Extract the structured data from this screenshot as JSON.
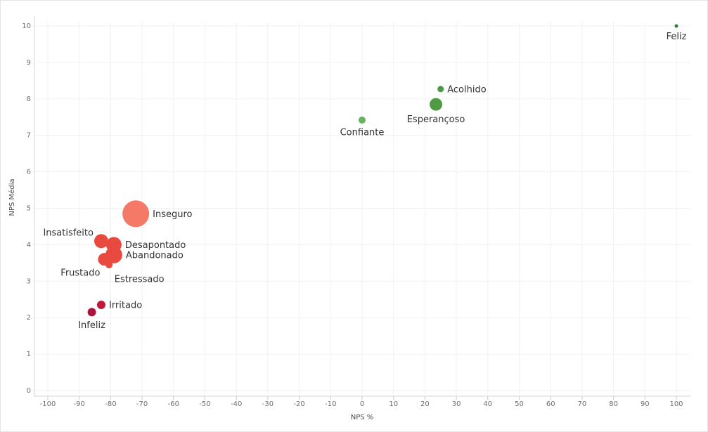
{
  "chart_data": {
    "type": "scatter",
    "xlabel": "NPS %",
    "ylabel": "NPS Média",
    "xlim": [
      -100,
      100
    ],
    "ylim": [
      0,
      10
    ],
    "xticks": [
      -100,
      -90,
      -80,
      -70,
      -60,
      -50,
      -40,
      -30,
      -20,
      -10,
      0,
      10,
      20,
      30,
      40,
      50,
      60,
      70,
      80,
      90,
      100
    ],
    "yticks": [
      0,
      1,
      2,
      3,
      4,
      5,
      6,
      7,
      8,
      9,
      10
    ],
    "grid": true,
    "points": [
      {
        "label": "Feliz",
        "x": 100,
        "y": 10.0,
        "size": 2.5,
        "color": "#2e7d32",
        "label_pos": "below"
      },
      {
        "label": "Acolhido",
        "x": 25,
        "y": 8.27,
        "size": 4.5,
        "color": "#4a9a45",
        "label_pos": "right"
      },
      {
        "label": "Esperançoso",
        "x": 23.5,
        "y": 7.85,
        "size": 9,
        "color": "#4f9a45",
        "label_pos": "below"
      },
      {
        "label": "Confiante",
        "x": 0,
        "y": 7.42,
        "size": 5,
        "color": "#67b35d",
        "label_pos": "below"
      },
      {
        "label": "Inseguro",
        "x": -72,
        "y": 4.85,
        "size": 19,
        "color": "#f47a67",
        "label_pos": "right"
      },
      {
        "label": "Insatisfeito",
        "x": -83,
        "y": 4.1,
        "size": 10,
        "color": "#e84a3f",
        "label_pos": "left-above"
      },
      {
        "label": "Desapontado",
        "x": -79,
        "y": 4.0,
        "size": 11,
        "color": "#e84a3f",
        "label_pos": "right"
      },
      {
        "label": "Abandonado",
        "x": -79,
        "y": 3.72,
        "size": 12,
        "color": "#e84a3f",
        "label_pos": "right"
      },
      {
        "label": "Frustado",
        "x": -82,
        "y": 3.6,
        "size": 9,
        "color": "#e84a3f",
        "label_pos": "left-below"
      },
      {
        "label": "Estressado",
        "x": -80.5,
        "y": 3.45,
        "size": 5,
        "color": "#e84a3f",
        "label_pos": "below-right"
      },
      {
        "label": "Irritado",
        "x": -83,
        "y": 2.35,
        "size": 6,
        "color": "#c2183a",
        "label_pos": "right"
      },
      {
        "label": "Infeliz",
        "x": -86,
        "y": 2.15,
        "size": 6,
        "color": "#b0133a",
        "label_pos": "below"
      }
    ]
  }
}
